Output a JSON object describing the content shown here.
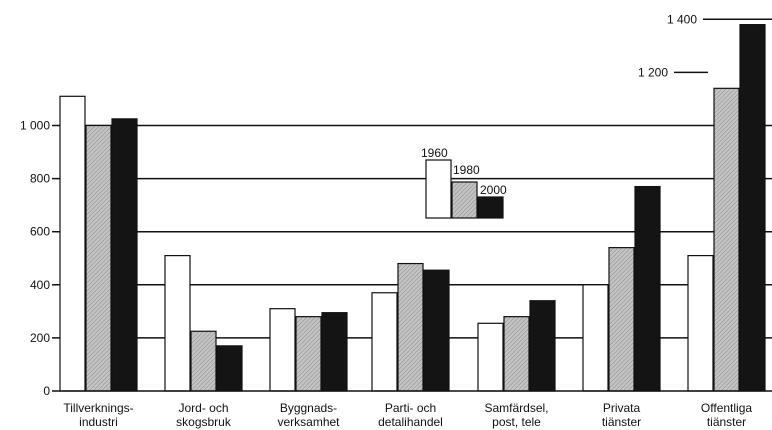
{
  "chart_data": {
    "type": "bar",
    "categories": [
      [
        "Tillverknings-",
        "industri"
      ],
      [
        "Jord- och",
        "skogsbruk"
      ],
      [
        "Byggnads-",
        "verksamhet"
      ],
      [
        "Parti- och",
        "detalihandel"
      ],
      [
        "Samfärdsel,",
        "post, tele"
      ],
      [
        "Privata",
        "tiänster"
      ],
      [
        "Offentliga",
        "tiänster"
      ]
    ],
    "series": [
      {
        "name": "1960",
        "color": "#ffffff",
        "values": [
          1110,
          510,
          310,
          370,
          255,
          400,
          510
        ]
      },
      {
        "name": "1980",
        "color": "#bdbdbd",
        "values": [
          1000,
          225,
          280,
          480,
          280,
          540,
          1140
        ]
      },
      {
        "name": "2000",
        "color": "#141414",
        "values": [
          1025,
          170,
          295,
          455,
          340,
          770,
          1380
        ]
      }
    ],
    "ylim": [
      0,
      1400
    ],
    "yticks": [
      {
        "value": 0,
        "label": "0"
      },
      {
        "value": 200,
        "label": "200"
      },
      {
        "value": 400,
        "label": "400"
      },
      {
        "value": 600,
        "label": "600"
      },
      {
        "value": 800,
        "label": "800"
      },
      {
        "value": 1000,
        "label": "1 000"
      },
      {
        "value": 1200,
        "label": "1 200"
      },
      {
        "value": 1400,
        "label": "1 400"
      }
    ],
    "grid": true,
    "legend_position": "center"
  }
}
